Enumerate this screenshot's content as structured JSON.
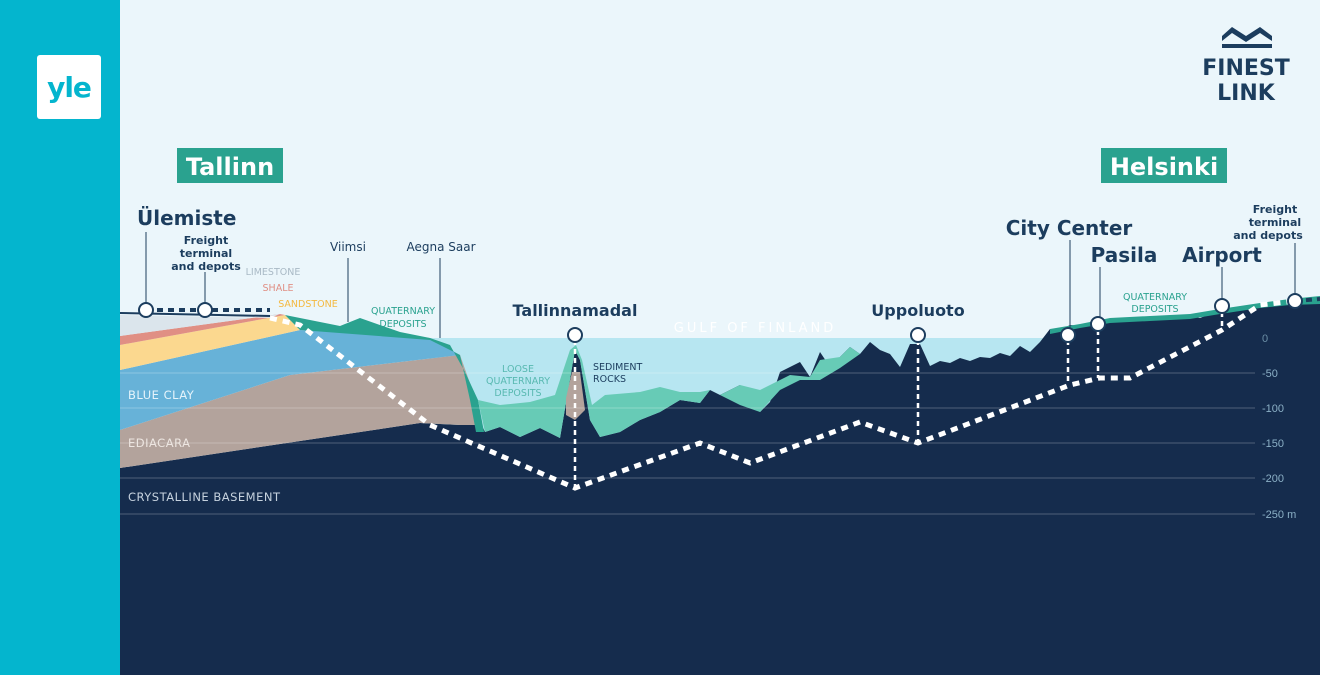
{
  "brand": {
    "yle_logo_text": "yle",
    "finest_link_logo": "FINEST LINK"
  },
  "cities": {
    "tallinn": "Tallinn",
    "helsinki": "Helsinki"
  },
  "stations": {
    "ulemiste": "Ülemiste",
    "freight_left": [
      "Freight",
      "terminal",
      "and depots"
    ],
    "tallinnamadal": "Tallinnamadal",
    "uppoluoto": "Uppoluoto",
    "city_center": "City Center",
    "pasila": "Pasila",
    "airport": "Airport",
    "freight_right": [
      "Freight",
      "terminal",
      "and depots"
    ]
  },
  "places": {
    "viimsi": "Viimsi",
    "aegna_saar": "Aegna Saar",
    "gulf": "GULF OF FINLAND"
  },
  "layers": {
    "limestone": "LIMESTONE",
    "shale": "SHALE",
    "sandstone": "SANDSTONE",
    "quaternary_left": [
      "QUATERNARY",
      "DEPOSITS"
    ],
    "loose_quaternary": [
      "LOOSE",
      "QUATERNARY",
      "DEPOSITS"
    ],
    "sediment_rocks": [
      "SEDIMENT",
      "ROCKS"
    ],
    "quaternary_right": [
      "QUATERNARY",
      "DEPOSITS"
    ],
    "blue_clay": "BLUE CLAY",
    "ediacara": "EDIACARA",
    "crystalline_basement": "CRYSTALLINE BASEMENT"
  },
  "depth_scale": [
    "0",
    "-50",
    "-100",
    "-150",
    "-200",
    "-250 m"
  ],
  "colors": {
    "sidebar": "#04b5ce",
    "sky": "#ebf6fb",
    "water": "#b7e6f1",
    "bedrock": "#152c4d",
    "ediacara": "#b3a39c",
    "blue_clay": "#67b2d8",
    "sandstone": "#fbd88f",
    "shale": "#e08f84",
    "limestone": "#dbe5ec",
    "quaternary": "#2aa28f",
    "loose_quaternary": "#67cbb6",
    "label_box": "#2aa28f",
    "text_dark": "#1c3d5e",
    "tunnel": "#ffffff"
  }
}
